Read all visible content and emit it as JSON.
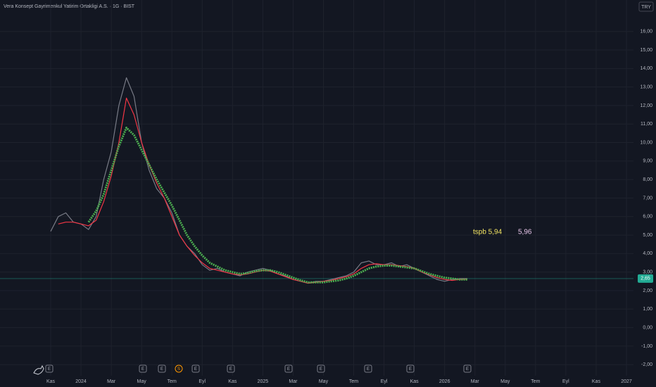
{
  "chart_data": {
    "type": "line",
    "title": "Vera Konsept Gayrimenkul Yatirim Ortakligi A.S. · 1G · BIST",
    "currency": "TRY",
    "categories": [
      "Kas",
      null,
      null,
      null,
      "2024",
      null,
      null,
      null,
      "Mar",
      null,
      null,
      null,
      "May",
      null,
      null,
      null,
      "Tem",
      null,
      null,
      null,
      "Eyl",
      null,
      null,
      null,
      "Kas",
      null,
      null,
      null,
      "2025",
      null,
      null,
      null,
      "Mar",
      null,
      null,
      null,
      "May",
      null,
      null,
      null,
      "Tem",
      null,
      null,
      null,
      "Eyl",
      null,
      null,
      null,
      "Kas",
      null,
      null,
      null,
      "2026",
      null,
      null,
      null,
      "Mar",
      null,
      null,
      null,
      "May",
      null,
      null,
      null,
      "Tem",
      null,
      null,
      null,
      "Eyl",
      null,
      null,
      null,
      "Kas",
      null,
      null,
      null,
      "2027"
    ],
    "series": [
      {
        "color": "#787b86",
        "values": [
          5.2,
          6.0,
          6.2,
          5.7,
          5.6,
          5.3,
          6.0,
          8.0,
          9.5,
          12.0,
          13.5,
          12.5,
          10.0,
          8.5,
          7.5,
          7.0,
          6.2,
          5.0,
          4.4,
          4.0,
          3.4,
          3.1,
          3.2,
          3.0,
          2.9,
          2.8,
          3.0,
          3.1,
          3.2,
          3.1,
          2.9,
          2.8,
          2.6,
          2.5,
          2.4,
          2.5,
          2.5,
          2.6,
          2.7,
          2.8,
          3.0,
          3.5,
          3.6,
          3.4,
          3.4,
          3.5,
          3.3,
          3.4,
          3.2,
          3.0,
          2.8,
          2.6,
          2.5,
          2.6,
          2.65,
          2.65,
          null,
          null,
          null,
          null,
          null,
          null,
          null,
          null,
          null,
          null,
          null,
          null,
          null,
          null,
          null,
          null,
          null,
          null,
          null,
          null,
          null
        ]
      },
      {
        "color": "#f23645",
        "values": [
          null,
          5.6,
          5.7,
          5.7,
          5.6,
          5.5,
          5.8,
          6.8,
          8.2,
          10.0,
          12.4,
          11.5,
          10.0,
          8.8,
          7.8,
          7.0,
          6.0,
          5.0,
          4.4,
          3.9,
          3.5,
          3.2,
          3.1,
          3.0,
          2.9,
          2.85,
          2.9,
          3.0,
          3.1,
          3.05,
          2.9,
          2.75,
          2.6,
          2.5,
          2.4,
          2.45,
          2.5,
          2.55,
          2.65,
          2.75,
          2.9,
          3.2,
          3.4,
          3.45,
          3.4,
          3.4,
          3.35,
          3.3,
          3.2,
          3.0,
          2.85,
          2.7,
          2.6,
          2.55,
          2.6,
          2.62,
          null,
          null,
          null,
          null,
          null,
          null,
          null,
          null,
          null,
          null,
          null,
          null,
          null,
          null,
          null,
          null,
          null,
          null,
          null,
          null,
          null
        ]
      },
      {
        "color": "#4caf50",
        "values": [
          null,
          null,
          null,
          null,
          null,
          5.7,
          6.3,
          7.2,
          8.5,
          9.8,
          10.8,
          10.4,
          9.6,
          8.8,
          8.0,
          7.3,
          6.6,
          5.8,
          5.0,
          4.4,
          3.9,
          3.5,
          3.3,
          3.1,
          3.0,
          2.9,
          2.95,
          3.05,
          3.1,
          3.1,
          3.0,
          2.85,
          2.7,
          2.55,
          2.45,
          2.45,
          2.45,
          2.5,
          2.55,
          2.65,
          2.8,
          3.0,
          3.2,
          3.3,
          3.35,
          3.35,
          3.3,
          3.25,
          3.2,
          3.05,
          2.9,
          2.8,
          2.7,
          2.65,
          2.6,
          2.6,
          null,
          null,
          null,
          null,
          null,
          null,
          null,
          null,
          null,
          null,
          null,
          null,
          null,
          null,
          null,
          null,
          null,
          null,
          null,
          null,
          null
        ]
      }
    ],
    "ylim": [
      -2.6,
      17.7
    ],
    "yticks": [
      {
        "value": 16,
        "label": "16,00"
      },
      {
        "value": 15,
        "label": "15,00"
      },
      {
        "value": 14,
        "label": "14,00"
      },
      {
        "value": 13,
        "label": "13,00"
      },
      {
        "value": 12,
        "label": "12,00"
      },
      {
        "value": 11,
        "label": "11,00"
      },
      {
        "value": 10,
        "label": "10,00"
      },
      {
        "value": 9,
        "label": "9,00"
      },
      {
        "value": 8,
        "label": "8,00"
      },
      {
        "value": 7,
        "label": "7,00"
      },
      {
        "value": 6,
        "label": "6,00"
      },
      {
        "value": 5,
        "label": "5,00"
      },
      {
        "value": 4,
        "label": "4,00"
      },
      {
        "value": 3,
        "label": "3,00"
      },
      {
        "value": 2,
        "label": "2,00"
      },
      {
        "value": 1,
        "label": "1,00"
      },
      {
        "value": 0,
        "label": "0,00"
      },
      {
        "value": -1,
        "label": "-1,00"
      },
      {
        "value": -2,
        "label": "-2,00"
      }
    ],
    "grid": true,
    "last_price": {
      "value": 2.65,
      "label": "2,65"
    },
    "last_price_color": "#22ab94",
    "annotations": [
      "tspb 5,94",
      "5,96"
    ],
    "annotation_colors": [
      "#f5e663",
      "#e6c4e8"
    ],
    "events": [
      "E",
      "E",
      "E",
      "S",
      "E",
      "E",
      "E",
      "E",
      "E",
      "E",
      "E"
    ]
  }
}
